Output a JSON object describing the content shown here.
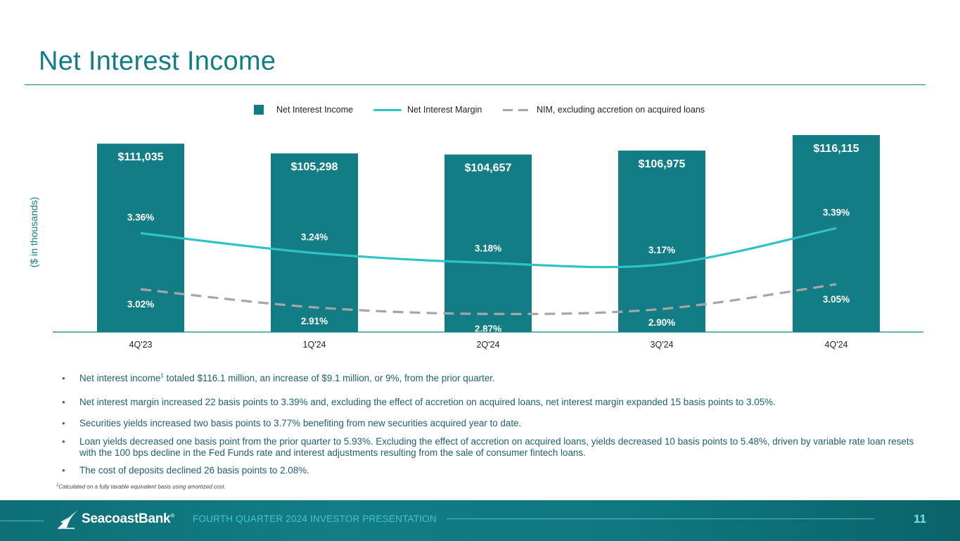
{
  "slide": {
    "title": "Net Interest Income",
    "y_axis_label": "($ in thousands)"
  },
  "legend": {
    "nii": "Net Interest Income",
    "nim": "Net Interest Margin",
    "nim_ex": "NIM, excluding accretion on acquired loans"
  },
  "chart_data": {
    "type": "bar",
    "title": "Net Interest Income",
    "ylabel": "($ in thousands)",
    "categories": [
      "4Q'23",
      "1Q'24",
      "2Q'24",
      "3Q'24",
      "4Q'24"
    ],
    "series": [
      {
        "name": "Net Interest Income",
        "type": "bar",
        "values": [
          111035,
          105298,
          104657,
          106975,
          116115
        ],
        "labels": [
          "$111,035",
          "$105,298",
          "$104,657",
          "$106,975",
          "$116,115"
        ],
        "color": "#127d85"
      },
      {
        "name": "Net Interest Margin",
        "type": "line",
        "values": [
          3.36,
          3.24,
          3.18,
          3.17,
          3.39
        ],
        "labels": [
          "3.36%",
          "3.24%",
          "3.18%",
          "3.17%",
          "3.39%"
        ],
        "color": "#2dc3c7"
      },
      {
        "name": "NIM, excluding accretion on acquired loans",
        "type": "line-dashed",
        "values": [
          3.02,
          2.91,
          2.87,
          2.9,
          3.05
        ],
        "labels": [
          "3.02%",
          "2.91%",
          "2.87%",
          "2.90%",
          "3.05%"
        ],
        "color": "#a6a6a6"
      }
    ],
    "bar_axis_max": 116115,
    "margin_axis": [
      2.76,
      3.58
    ]
  },
  "bullets": [
    {
      "before": "Net interest income",
      "sup": "1",
      "after": " totaled $116.1 million, an increase of $9.1 million, or 9%, from the prior quarter."
    },
    {
      "before": "Net interest margin increased 22 basis points to 3.39% and, excluding the effect of accretion on acquired loans, net interest margin expanded 15 basis points to 3.05%.",
      "sup": "",
      "after": ""
    },
    {
      "before": "Securities yields increased two basis points to 3.77% benefiting from new securities acquired year to date.",
      "sup": "",
      "after": ""
    },
    {
      "before": "Loan yields decreased one basis point from the prior quarter to 5.93%. Excluding the effect of accretion on acquired loans, yields decreased 10 basis points to 5.48%, driven by variable rate loan resets with the 100 bps decline in the Fed Funds rate and interest adjustments resulting from the sale of consumer fintech loans.",
      "sup": "",
      "after": ""
    },
    {
      "before": "The cost of deposits declined 26 basis points to 2.08%.",
      "sup": "",
      "after": ""
    }
  ],
  "bullet_marker": "•",
  "footnote": {
    "sup": "1",
    "text": "Calculated on a fully taxable equivalent basis using amortized cost."
  },
  "footer": {
    "brand": "SeacoastBank",
    "trademark": "®",
    "presentation": "FOURTH QUARTER 2024 INVESTOR PRESENTATION",
    "page_number": "11"
  },
  "colors": {
    "accent": "#127d85",
    "nim_line": "#2dc3c7",
    "nim_ex_line": "#a6a6a6"
  }
}
